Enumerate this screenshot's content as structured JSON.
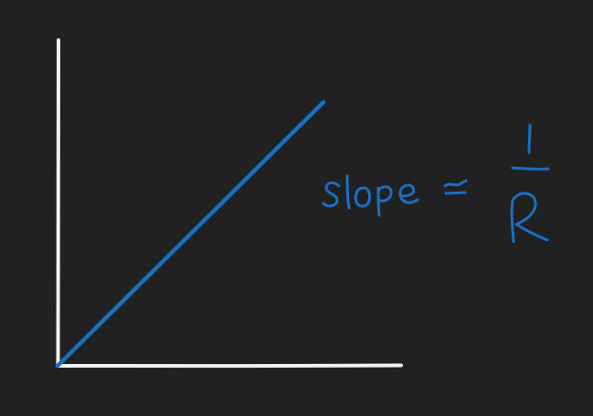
{
  "colors": {
    "background": "#212121",
    "axes": "#f2f2f2",
    "line": "#1a6fc4",
    "annotation": "#1a6fc4"
  },
  "diagram": {
    "type": "hand-drawn linear graph through origin",
    "annotation": {
      "label": "slope",
      "relation": "≃",
      "numerator": "1",
      "denominator": "R"
    }
  }
}
